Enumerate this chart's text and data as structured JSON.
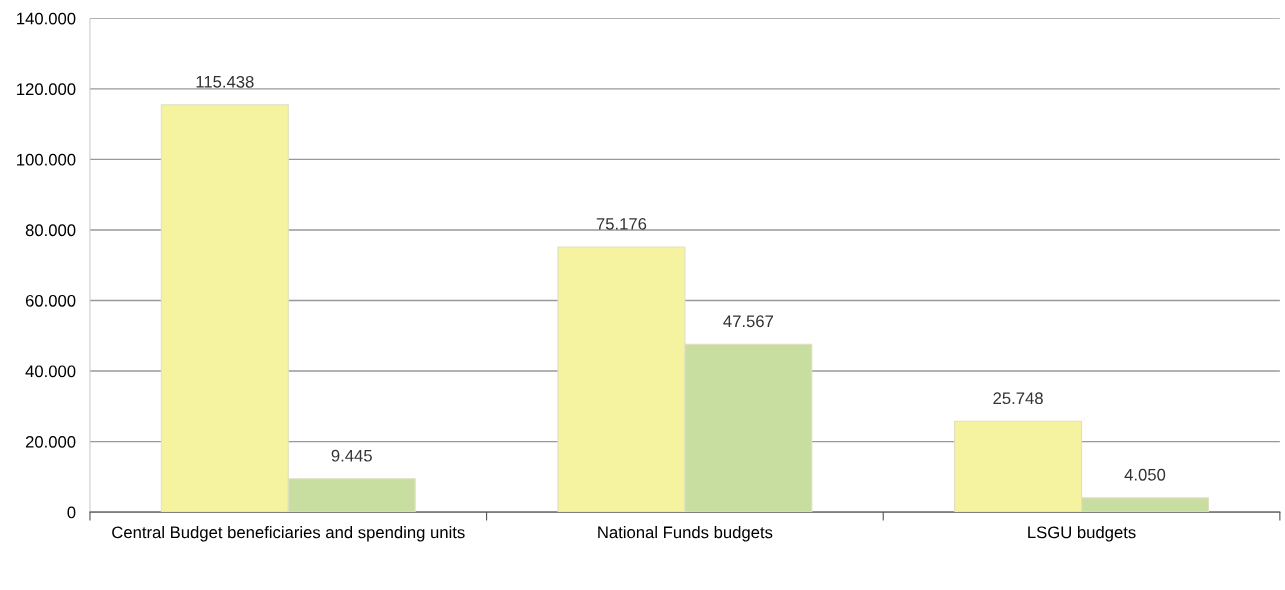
{
  "chart_data": {
    "type": "bar",
    "categories": [
      "Central Budget beneficiaries and spending units",
      "National Funds budgets",
      "LSGU budgets"
    ],
    "series": [
      {
        "color": "#f5f3a0",
        "values": [
          115438,
          75176,
          25748
        ],
        "value_labels": [
          "115.438",
          "75.176",
          "25.748"
        ]
      },
      {
        "color": "#c8dea0",
        "values": [
          9445,
          47567,
          4050
        ],
        "value_labels": [
          "9.445",
          "47.567",
          "4.050"
        ]
      }
    ],
    "ylim": [
      0,
      140000
    ],
    "yticks": [
      {
        "value": 0,
        "label": "0"
      },
      {
        "value": 20000,
        "label": "20.000"
      },
      {
        "value": 40000,
        "label": "40.000"
      },
      {
        "value": 60000,
        "label": "60.000"
      },
      {
        "value": 80000,
        "label": "80.000"
      },
      {
        "value": 100000,
        "label": "100.000"
      },
      {
        "value": 120000,
        "label": "120.000"
      },
      {
        "value": 140000,
        "label": "140.000"
      }
    ],
    "grid": "y",
    "legend": false
  }
}
